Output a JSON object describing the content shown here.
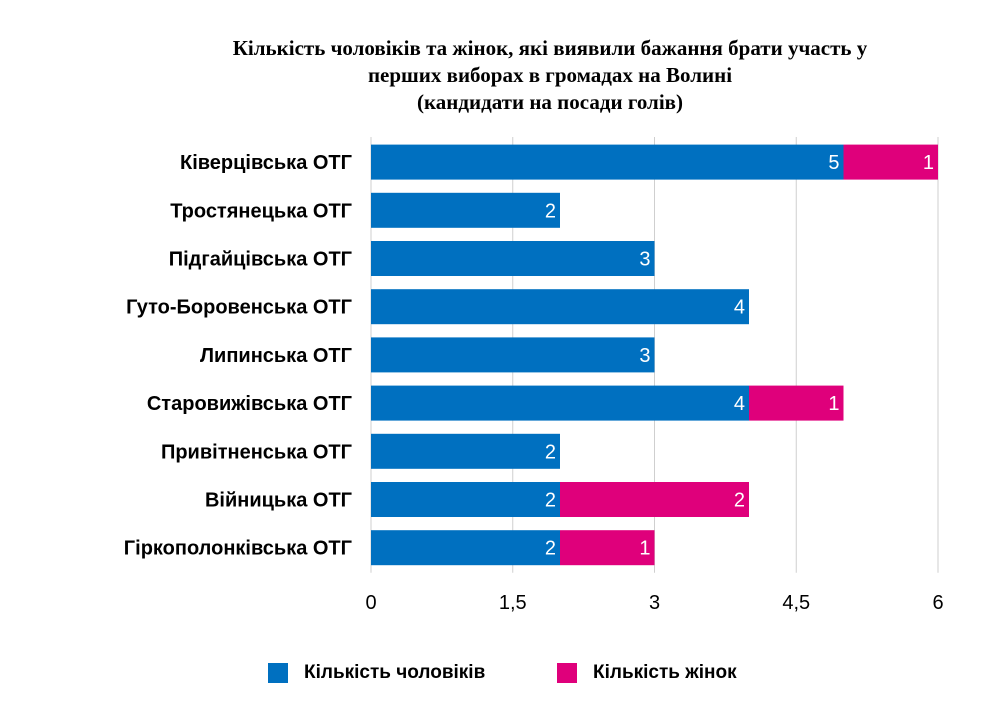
{
  "title": {
    "line1": "Кількість чоловіків та жінок, які виявили бажання брати участь у",
    "line2": "перших виборах в громадах на Волині",
    "line3": "(кандидати на посади голів)"
  },
  "colors": {
    "men": "#0070c0",
    "women": "#df007b",
    "grid": "#cfcfcf"
  },
  "chart_data": {
    "type": "bar",
    "orientation": "horizontal",
    "stacked": true,
    "categories": [
      "Ківерцівська ОТГ",
      "Тростянецька ОТГ",
      "Підгайцівська ОТГ",
      "Гуто-Боровенська ОТГ",
      "Липинська ОТГ",
      "Старовижівська ОТГ",
      "Привітненська ОТГ",
      "Війницька ОТГ",
      "Гіркополонківська ОТГ"
    ],
    "series": [
      {
        "name": "Кількість чоловіків",
        "values": [
          5,
          2,
          3,
          4,
          3,
          4,
          2,
          2,
          2
        ]
      },
      {
        "name": "Кількість жінок",
        "values": [
          1,
          0,
          0,
          0,
          0,
          1,
          0,
          2,
          1
        ]
      }
    ],
    "xlim": [
      0,
      6
    ],
    "ticks": [
      0,
      1.5,
      3,
      4.5,
      6
    ],
    "tick_labels": [
      "0",
      "1,5",
      "3",
      "4,5",
      "6"
    ],
    "grid": true,
    "legend": "bottom"
  },
  "legend": {
    "men_label": "Кількість чоловіків",
    "women_label": "Кількість жінок"
  }
}
